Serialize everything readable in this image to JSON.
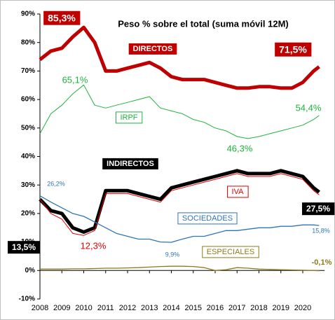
{
  "chart_data": {
    "type": "line",
    "title": "Peso % sobre el total (suma móvil 12M)",
    "x": [
      2008,
      2008.5,
      2009,
      2009.5,
      2010,
      2010.5,
      2011,
      2011.5,
      2012,
      2012.5,
      2013,
      2013.5,
      2014,
      2014.5,
      2015,
      2015.5,
      2016,
      2016.5,
      2017,
      2017.5,
      2018,
      2018.5,
      2019,
      2019.5,
      2020,
      2020.5,
      2020.75
    ],
    "xlim": [
      2008,
      2021
    ],
    "xticks": [
      2008,
      2009,
      2010,
      2011,
      2012,
      2013,
      2014,
      2015,
      2016,
      2017,
      2018,
      2019,
      2020
    ],
    "ylim": [
      -10,
      90
    ],
    "yticks": [
      {
        "value": -10,
        "label": "-10%"
      },
      {
        "value": 0,
        "label": "0%"
      },
      {
        "value": 10,
        "label": "10%"
      },
      {
        "value": 20,
        "label": "20%"
      },
      {
        "value": 30,
        "label": "30%"
      },
      {
        "value": 40,
        "label": "40%"
      },
      {
        "value": 50,
        "label": "50%"
      },
      {
        "value": 60,
        "label": "60%"
      },
      {
        "value": 70,
        "label": "70%"
      },
      {
        "value": 80,
        "label": "80%"
      },
      {
        "value": 90,
        "label": "90%"
      }
    ],
    "series": [
      {
        "name": "DIRECTOS",
        "color": "#c00000",
        "width": 5,
        "values": [
          74,
          77,
          78,
          82,
          85.3,
          80,
          70,
          70,
          71,
          72,
          73,
          71,
          68,
          67,
          67,
          67,
          66,
          65,
          64,
          64,
          64.5,
          64.5,
          64,
          64,
          66,
          70,
          71.5
        ],
        "value_labels": [
          {
            "index": 4,
            "label": "85,3%"
          },
          {
            "index": 26,
            "label": "71,5%"
          }
        ]
      },
      {
        "name": "IRPF",
        "color": "#1eb33c",
        "width": 1,
        "values": [
          48,
          55,
          58,
          62,
          65.1,
          58,
          57,
          58,
          59,
          60,
          61,
          57,
          56,
          55,
          53,
          52,
          50,
          49,
          47,
          46.3,
          47,
          48,
          49,
          50,
          51,
          53,
          54.4
        ],
        "value_labels": [
          {
            "index": 4,
            "label": "65,1%"
          },
          {
            "index": 19,
            "label": "46,3%"
          },
          {
            "index": 26,
            "label": "54,4%"
          }
        ]
      },
      {
        "name": "INDIRECTOS",
        "color": "#000000",
        "width": 5,
        "values": [
          25,
          21,
          20,
          15,
          13.5,
          15,
          28,
          28,
          28,
          27,
          26,
          25,
          29,
          30,
          31,
          32,
          33,
          34,
          35,
          34,
          34,
          34,
          35,
          34,
          33,
          29,
          27.5
        ],
        "value_labels": [
          {
            "index": 4,
            "label": "13,5%"
          },
          {
            "index": 26,
            "label": "27,5%"
          }
        ]
      },
      {
        "name": "IVA",
        "color": "#e00000",
        "width": 1,
        "values": [
          25,
          20,
          18,
          13,
          12.3,
          14,
          27,
          27,
          27,
          26,
          25,
          24,
          28,
          29,
          30,
          31,
          32,
          33,
          34,
          33,
          33,
          33,
          34,
          33,
          32,
          28,
          26.5
        ],
        "value_labels": [
          {
            "index": 4,
            "label": "12,3%"
          }
        ]
      },
      {
        "name": "SOCIEDADES",
        "color": "#2e75b6",
        "width": 1.3,
        "values": [
          26.2,
          24,
          22,
          20,
          19,
          17,
          15,
          13,
          12,
          11,
          11,
          10,
          9.9,
          11,
          12,
          12,
          13,
          14,
          14,
          14.5,
          15,
          15,
          15.5,
          15.5,
          16,
          16,
          15.8
        ],
        "value_labels": [
          {
            "index": 0,
            "label": "26,2%"
          },
          {
            "index": 12,
            "label": "9,9%"
          },
          {
            "index": 26,
            "label": "15,8%"
          }
        ]
      },
      {
        "name": "ESPECIALES",
        "color": "#8c7a1a",
        "width": 1.3,
        "values": [
          0.5,
          0.5,
          0.5,
          0.6,
          0.6,
          0.7,
          0.8,
          0.8,
          0.9,
          1,
          1.2,
          1.4,
          1.5,
          1.5,
          1.4,
          1,
          0,
          0.3,
          1,
          0.8,
          0.5,
          0.4,
          0.3,
          0.2,
          0.1,
          0,
          -0.1
        ],
        "value_labels": [
          {
            "index": 26,
            "label": "-0,1%"
          }
        ]
      }
    ]
  }
}
